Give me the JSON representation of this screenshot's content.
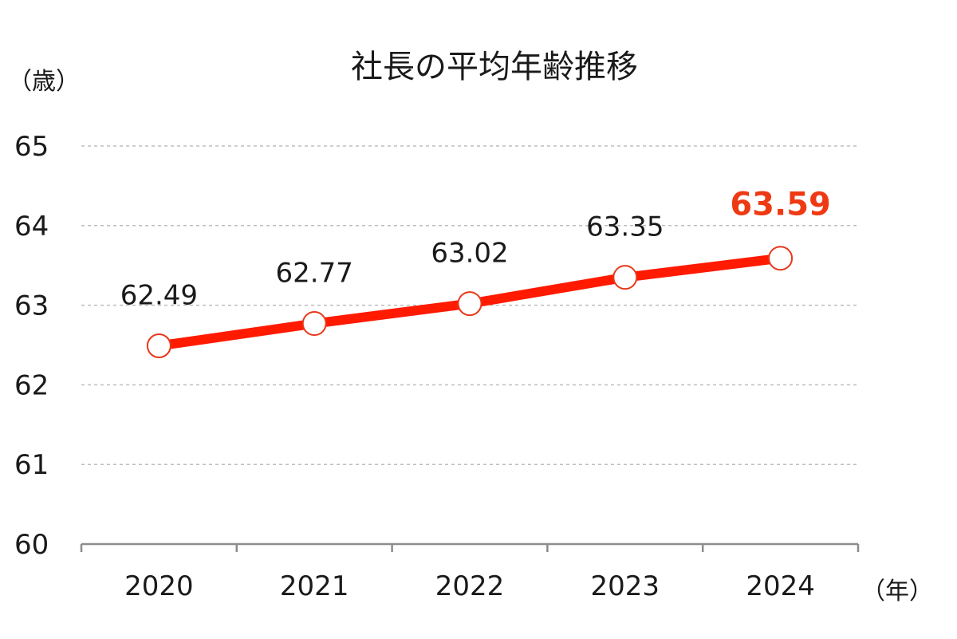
{
  "chart_data": {
    "type": "line",
    "title": "社長の平均年齢推移",
    "ylabel": "（歳）",
    "xlabel": "（年）",
    "ylim": [
      60,
      65
    ],
    "yticks": [
      "60",
      "61",
      "62",
      "63",
      "64",
      "65"
    ],
    "grid": true,
    "legend": "none",
    "categories": [
      "2020",
      "2021",
      "2022",
      "2023",
      "2024"
    ],
    "series": [
      {
        "values": [
          62.49,
          62.77,
          63.02,
          63.35,
          63.59
        ],
        "labels": [
          "62.49",
          "62.77",
          "63.02",
          "63.35",
          "63.59"
        ]
      }
    ],
    "highlight_index": 4
  },
  "colors": {
    "line": "#ff1a00",
    "marker_stroke": "#e8381a",
    "marker_fill": "#ffffff",
    "highlight_label": "#ee3a14",
    "grid": "#bdbdbd",
    "axis": "#8c8c8c",
    "text": "#1a1a1a"
  }
}
